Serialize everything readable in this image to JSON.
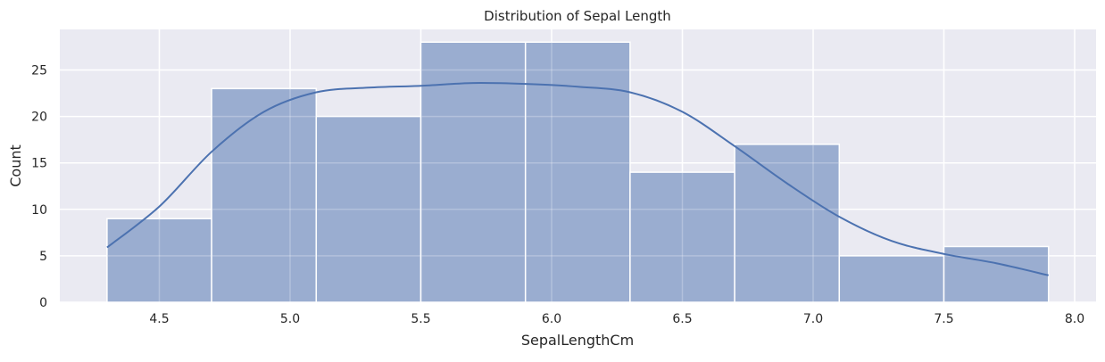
{
  "chart_data": {
    "type": "bar",
    "subtype": "histogram_with_kde",
    "title": "Distribution of Sepal Length",
    "xlabel": "SepalLengthCm",
    "ylabel": "Count",
    "bin_edges": [
      4.3,
      4.7,
      5.1,
      5.5,
      5.9,
      6.3,
      6.7,
      7.1,
      7.5,
      7.9
    ],
    "categories": [
      "4.3-4.7",
      "4.7-5.1",
      "5.1-5.5",
      "5.5-5.9",
      "5.9-6.3",
      "6.3-6.7",
      "6.7-7.1",
      "7.1-7.5",
      "7.5-7.9"
    ],
    "values": [
      9,
      23,
      20,
      28,
      28,
      14,
      17,
      5,
      6
    ],
    "kde": {
      "x": [
        4.3,
        4.5,
        4.7,
        4.9,
        5.1,
        5.3,
        5.5,
        5.7,
        5.9,
        6.1,
        6.3,
        6.5,
        6.7,
        6.9,
        7.1,
        7.3,
        7.5,
        7.7,
        7.9
      ],
      "y": [
        5.9,
        10.3,
        16.2,
        20.5,
        22.6,
        23.1,
        23.3,
        23.6,
        23.5,
        23.2,
        22.6,
        20.5,
        16.8,
        12.8,
        9.2,
        6.6,
        5.2,
        4.2,
        2.9
      ]
    },
    "xticks": [
      "4.5",
      "5.0",
      "5.5",
      "6.0",
      "6.5",
      "7.0",
      "7.5",
      "8.0"
    ],
    "yticks": [
      "0",
      "5",
      "10",
      "15",
      "20",
      "25"
    ],
    "xlim": [
      4.12,
      8.08
    ],
    "ylim": [
      0,
      29.4
    ],
    "grid": true,
    "legend": null,
    "colors": {
      "bar_fill": "#9aadd0",
      "bar_edge": "#ffffff",
      "kde_line": "#4c72b0",
      "background": "#eaeaf2",
      "grid": "#ffffff"
    }
  }
}
